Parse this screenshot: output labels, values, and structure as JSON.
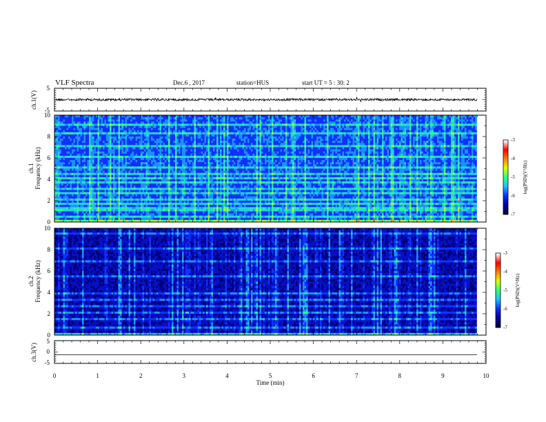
{
  "header": {
    "title": "VLF Spectra",
    "date": "Dec.6 , 2017",
    "station": "station=HUS",
    "start": "start UT = 5 : 30: 2"
  },
  "chart_data": [
    {
      "type": "line",
      "name": "ch1-waveform",
      "ylabel": "ch.1(V)",
      "ylim": [
        -5,
        5
      ],
      "yticks": [
        "5",
        "-5"
      ],
      "xlim": [
        0,
        10
      ],
      "level_estimate": 0
    },
    {
      "type": "heatmap",
      "name": "ch1-spectrogram",
      "ylabel_top": "ch.1",
      "ylabel": "Frequency (kHz)",
      "ylim": [
        0,
        10
      ],
      "yticks": [
        0,
        2,
        4,
        6,
        8,
        10
      ],
      "xlim": [
        0,
        10
      ],
      "data_end_min": 9.8,
      "colorbar": {
        "label": "log(PSD)(V²/Hz)",
        "range": [
          -7,
          -3
        ],
        "ticks": [
          "-3",
          "-4",
          "-5",
          "-6",
          "-7"
        ]
      },
      "colormap": [
        "#000040",
        "#0000a0",
        "#1030ff",
        "#20c0ff",
        "#30ff80",
        "#e0ff00",
        "#ff8000",
        "#ff0000",
        "#ffffff"
      ],
      "harmonic_lines_khz": [
        0.3,
        0.6,
        1.2,
        1.5,
        1.9,
        2.3,
        2.8,
        3.3,
        3.8,
        4.2,
        4.6,
        5.3,
        6.3,
        7.2,
        8.3,
        9.2
      ]
    },
    {
      "type": "heatmap",
      "name": "ch2-spectrogram",
      "ylabel_top": "ch.2",
      "ylabel": "Frequency (kHz)",
      "ylim": [
        0,
        10
      ],
      "yticks": [
        0,
        2,
        4,
        6,
        8,
        10
      ],
      "xlim": [
        0,
        10
      ],
      "data_end_min": 9.8,
      "colorbar": {
        "label": "log(PSD)(V²/Hz)",
        "range": [
          -7,
          -3
        ],
        "ticks": [
          "-3",
          "-4",
          "-5",
          "-6",
          "-7"
        ]
      },
      "harmonic_lines_khz": [
        0.3,
        0.9,
        1.6,
        2.3,
        2.9,
        3.5,
        4.1,
        5.6,
        6.9,
        8.2,
        9.6
      ]
    },
    {
      "type": "line",
      "name": "ch3-waveform",
      "ylabel": "ch.3(V)",
      "ylim": [
        -5,
        5
      ],
      "yticks": [
        "5",
        "0",
        "-5"
      ],
      "xlim": [
        0,
        10
      ],
      "level_estimate": -1.2,
      "xlabel": "Time (min)",
      "xticks": [
        0,
        1,
        2,
        3,
        4,
        5,
        6,
        7,
        8,
        9,
        10
      ]
    }
  ]
}
